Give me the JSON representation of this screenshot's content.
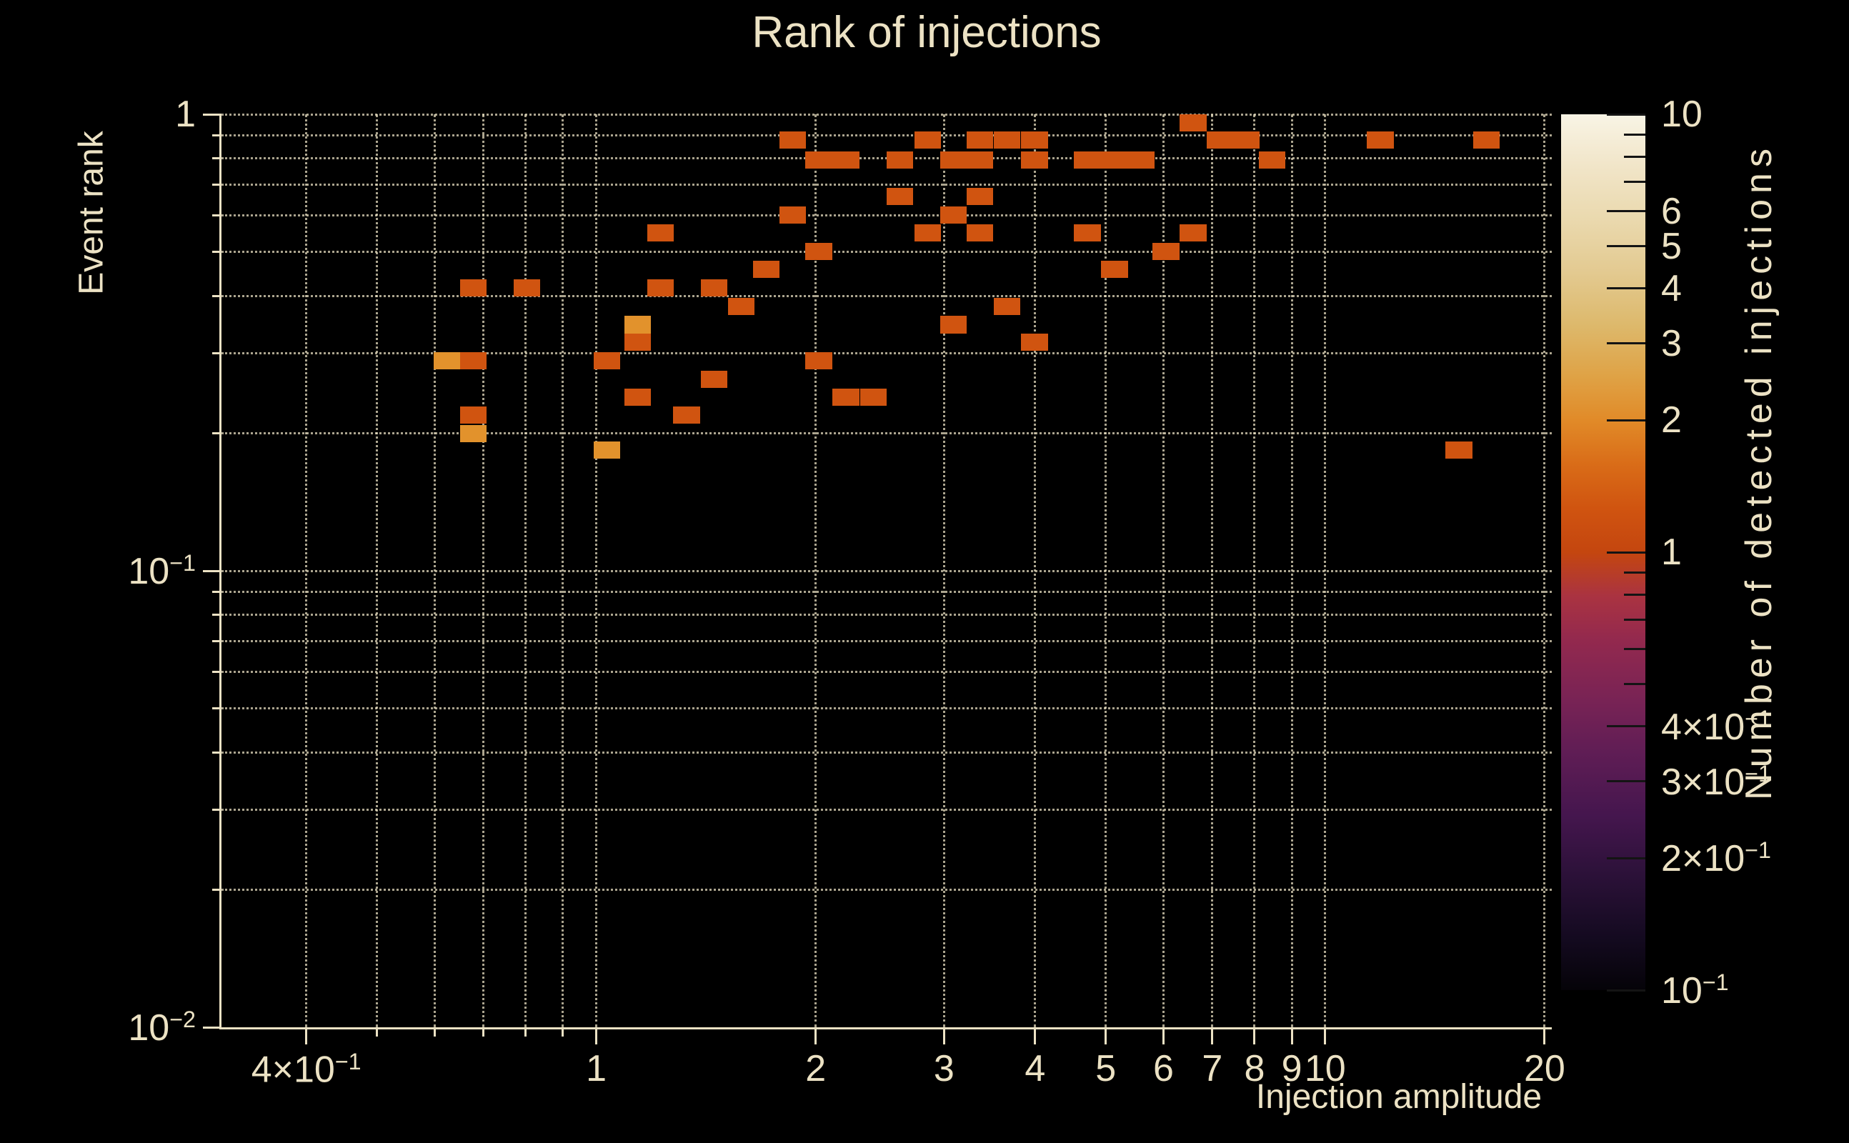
{
  "chart_data": {
    "type": "heatmap",
    "title": "Rank of injections",
    "xlabel": "Injection amplitude",
    "ylabel": "Event rank",
    "colorbar_label": "Number of detected injections",
    "x_scale": "log",
    "y_scale": "log",
    "color_scale": "log",
    "xlim": [
      0.306,
      20.46
    ],
    "ylim": [
      0.01,
      1.0
    ],
    "clim": [
      0.1,
      10
    ],
    "grid": "dotted",
    "legend_position": "right-colorbar",
    "bin_dex_x": 0.0368,
    "bin_dex_y": 0.0377,
    "x_major_ticks": [
      {
        "v": 0.4,
        "pre": "4×10",
        "sup": "−1"
      },
      {
        "v": 1,
        "pre": "1"
      },
      {
        "v": 2,
        "pre": "2"
      },
      {
        "v": 3,
        "pre": "3"
      },
      {
        "v": 4,
        "pre": "4"
      },
      {
        "v": 5,
        "pre": "5"
      },
      {
        "v": 6,
        "pre": "6"
      },
      {
        "v": 7,
        "pre": "7"
      },
      {
        "v": 8,
        "pre": "8"
      },
      {
        "v": 9,
        "pre": "9"
      },
      {
        "v": 10,
        "pre": "10"
      },
      {
        "v": 20,
        "pre": "20"
      }
    ],
    "x_minor_ticks": [
      0.5,
      0.6,
      0.7,
      0.8,
      0.9
    ],
    "x_gridlines": [
      0.4,
      0.5,
      0.6,
      0.7,
      0.8,
      0.9,
      1,
      2,
      3,
      4,
      5,
      6,
      7,
      8,
      9,
      10,
      20
    ],
    "y_major_ticks": [
      {
        "v": 1,
        "pre": "1"
      },
      {
        "v": 0.1,
        "pre": "10",
        "sup": "−1"
      },
      {
        "v": 0.01,
        "pre": "10",
        "sup": "−2"
      }
    ],
    "y_minor_ticks": [
      0.9,
      0.8,
      0.7,
      0.6,
      0.5,
      0.4,
      0.3,
      0.2,
      0.09,
      0.08,
      0.07,
      0.06,
      0.05,
      0.04,
      0.03,
      0.02
    ],
    "y_gridlines": [
      1,
      0.9,
      0.8,
      0.7,
      0.6,
      0.5,
      0.4,
      0.3,
      0.2,
      0.1,
      0.09,
      0.08,
      0.07,
      0.06,
      0.05,
      0.04,
      0.03,
      0.02
    ],
    "count_colors": {
      "1": "#d05410",
      "2": "#e2922c"
    },
    "cells": [
      {
        "amp": 0.624,
        "rank": 0.288,
        "count": 2
      },
      {
        "amp": 0.678,
        "rank": 0.416,
        "count": 1
      },
      {
        "amp": 0.678,
        "rank": 0.288,
        "count": 1
      },
      {
        "amp": 0.678,
        "rank": 0.219,
        "count": 1
      },
      {
        "amp": 0.678,
        "rank": 0.2,
        "count": 2
      },
      {
        "amp": 0.803,
        "rank": 0.416,
        "count": 1
      },
      {
        "amp": 1.034,
        "rank": 0.288,
        "count": 1
      },
      {
        "amp": 1.034,
        "rank": 0.184,
        "count": 2
      },
      {
        "amp": 1.14,
        "rank": 0.346,
        "count": 2
      },
      {
        "amp": 1.14,
        "rank": 0.317,
        "count": 1
      },
      {
        "amp": 1.14,
        "rank": 0.24,
        "count": 1
      },
      {
        "amp": 1.225,
        "rank": 0.549,
        "count": 1
      },
      {
        "amp": 1.225,
        "rank": 0.416,
        "count": 1
      },
      {
        "amp": 1.33,
        "rank": 0.219,
        "count": 1
      },
      {
        "amp": 1.45,
        "rank": 0.416,
        "count": 1
      },
      {
        "amp": 1.45,
        "rank": 0.263,
        "count": 1
      },
      {
        "amp": 1.58,
        "rank": 0.379,
        "count": 1
      },
      {
        "amp": 1.71,
        "rank": 0.458,
        "count": 1
      },
      {
        "amp": 1.86,
        "rank": 0.877,
        "count": 1
      },
      {
        "amp": 1.86,
        "rank": 0.602,
        "count": 1
      },
      {
        "amp": 2.02,
        "rank": 0.795,
        "count": 1
      },
      {
        "amp": 2.02,
        "rank": 0.501,
        "count": 1
      },
      {
        "amp": 2.02,
        "rank": 0.288,
        "count": 1
      },
      {
        "amp": 2.2,
        "rank": 0.795,
        "count": 1
      },
      {
        "amp": 2.2,
        "rank": 0.24,
        "count": 1
      },
      {
        "amp": 2.4,
        "rank": 0.24,
        "count": 1
      },
      {
        "amp": 2.61,
        "rank": 0.795,
        "count": 1
      },
      {
        "amp": 2.61,
        "rank": 0.661,
        "count": 1
      },
      {
        "amp": 2.85,
        "rank": 0.877,
        "count": 1
      },
      {
        "amp": 2.85,
        "rank": 0.549,
        "count": 1
      },
      {
        "amp": 3.09,
        "rank": 0.795,
        "count": 1
      },
      {
        "amp": 3.09,
        "rank": 0.602,
        "count": 1
      },
      {
        "amp": 3.09,
        "rank": 0.346,
        "count": 1
      },
      {
        "amp": 3.36,
        "rank": 0.877,
        "count": 1
      },
      {
        "amp": 3.36,
        "rank": 0.795,
        "count": 1
      },
      {
        "amp": 3.36,
        "rank": 0.661,
        "count": 1
      },
      {
        "amp": 3.36,
        "rank": 0.549,
        "count": 1
      },
      {
        "amp": 3.66,
        "rank": 0.877,
        "count": 1
      },
      {
        "amp": 3.66,
        "rank": 0.379,
        "count": 1
      },
      {
        "amp": 3.99,
        "rank": 0.877,
        "count": 1
      },
      {
        "amp": 3.99,
        "rank": 0.795,
        "count": 1
      },
      {
        "amp": 3.99,
        "rank": 0.317,
        "count": 1
      },
      {
        "amp": 4.72,
        "rank": 0.795,
        "count": 1
      },
      {
        "amp": 4.72,
        "rank": 0.549,
        "count": 1
      },
      {
        "amp": 5.14,
        "rank": 0.795,
        "count": 1
      },
      {
        "amp": 5.14,
        "rank": 0.458,
        "count": 1
      },
      {
        "amp": 5.59,
        "rank": 0.795,
        "count": 1
      },
      {
        "amp": 6.05,
        "rank": 0.501,
        "count": 1
      },
      {
        "amp": 6.59,
        "rank": 0.957,
        "count": 1
      },
      {
        "amp": 6.59,
        "rank": 0.549,
        "count": 1
      },
      {
        "amp": 7.17,
        "rank": 0.877,
        "count": 1
      },
      {
        "amp": 7.79,
        "rank": 0.877,
        "count": 1
      },
      {
        "amp": 8.46,
        "rank": 0.795,
        "count": 1
      },
      {
        "amp": 11.9,
        "rank": 0.877,
        "count": 1
      },
      {
        "amp": 16.65,
        "rank": 0.877,
        "count": 1
      },
      {
        "amp": 15.26,
        "rank": 0.184,
        "count": 1
      }
    ],
    "colorbar_major_ticks": [
      {
        "v": 10,
        "pre": "10"
      },
      {
        "v": 6,
        "pre": "6"
      },
      {
        "v": 5,
        "pre": "5"
      },
      {
        "v": 4,
        "pre": "4"
      },
      {
        "v": 3,
        "pre": "3"
      },
      {
        "v": 2,
        "pre": "2"
      },
      {
        "v": 1,
        "pre": "1"
      },
      {
        "v": 0.4,
        "pre": "4×10",
        "sup": "−1"
      },
      {
        "v": 0.3,
        "pre": "3×10",
        "sup": "−1"
      },
      {
        "v": 0.2,
        "pre": "2×10",
        "sup": "−1"
      },
      {
        "v": 0.1,
        "pre": "10",
        "sup": "−1"
      }
    ],
    "colorbar_minor_ticks": [
      9,
      8,
      7,
      0.9,
      0.8,
      0.7,
      0.6,
      0.5
    ],
    "colorbar_gradient": [
      {
        "p": 0,
        "c": "#050308"
      },
      {
        "p": 6,
        "c": "#140a20"
      },
      {
        "p": 13,
        "c": "#2b1138"
      },
      {
        "p": 20,
        "c": "#45164e"
      },
      {
        "p": 27,
        "c": "#5f1d55"
      },
      {
        "p": 33,
        "c": "#782355"
      },
      {
        "p": 40,
        "c": "#93294e"
      },
      {
        "p": 45,
        "c": "#aa3341"
      },
      {
        "p": 50,
        "c": "#c4460f"
      },
      {
        "p": 55,
        "c": "#d05410"
      },
      {
        "p": 60,
        "c": "#d96c18"
      },
      {
        "p": 65,
        "c": "#e18a28"
      },
      {
        "p": 70,
        "c": "#dfa245"
      },
      {
        "p": 76,
        "c": "#ddb96c"
      },
      {
        "p": 82,
        "c": "#e3ca91"
      },
      {
        "p": 88,
        "c": "#ead9ae"
      },
      {
        "p": 94,
        "c": "#f1e5c8"
      },
      {
        "p": 100,
        "c": "#f8f4e5"
      }
    ],
    "text_color": "#ece2c4",
    "background_color": "#000000"
  }
}
